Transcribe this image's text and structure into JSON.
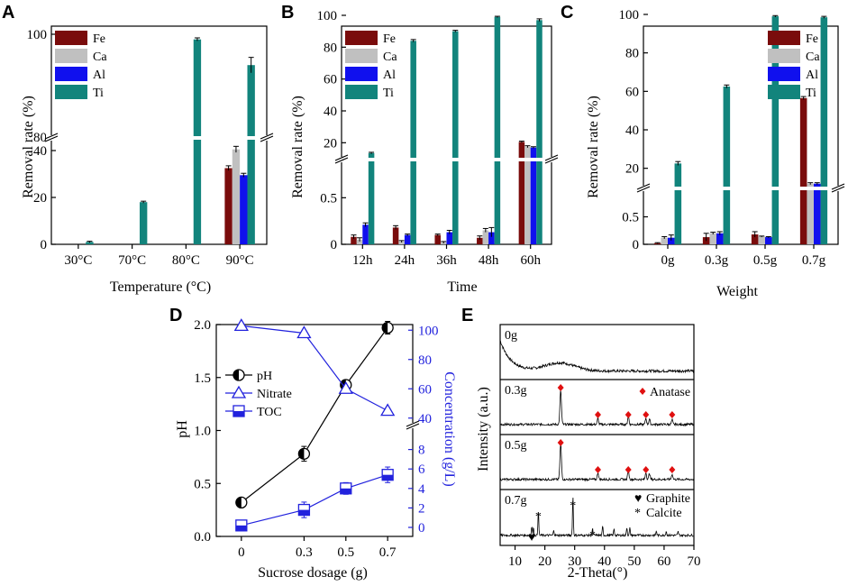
{
  "colors": {
    "Fe": "#7a0c0c",
    "Ca": "#c0c0c0",
    "Al": "#1010ee",
    "Ti": "#12847c",
    "axis_blue": "#2222dd",
    "anatase": "#e01010"
  },
  "panels": [
    {
      "letter": "A",
      "xlabel": "Temperature (°C)",
      "ylabel": "Removal rate (%)"
    },
    {
      "letter": "B",
      "xlabel": "Time",
      "ylabel": "Removal rate (%)"
    },
    {
      "letter": "C",
      "xlabel": "Weight",
      "ylabel": "Removal rate (%)"
    },
    {
      "letter": "D",
      "xlabel": "Sucrose dosage (g)",
      "ylabel": "pH",
      "ylabel2": "Concentration (g/L)"
    },
    {
      "letter": "E",
      "xlabel": "2-Theta(°)",
      "ylabel": "Intensity (a.u.)"
    }
  ],
  "chart_data": [
    {
      "id": "A",
      "type": "bar",
      "title": "",
      "categories": [
        "30°C",
        "70°C",
        "80°C",
        "90°C"
      ],
      "series": [
        {
          "name": "Fe",
          "values": [
            0,
            0,
            0,
            32.5
          ],
          "errors": [
            0,
            0,
            0,
            1
          ]
        },
        {
          "name": "Ca",
          "values": [
            0,
            0,
            0,
            40.5
          ],
          "errors": [
            0,
            0,
            0,
            1.3
          ]
        },
        {
          "name": "Al",
          "values": [
            0,
            0,
            0,
            29.5
          ],
          "errors": [
            0,
            0,
            0,
            0.8
          ]
        },
        {
          "name": "Ti",
          "values": [
            1,
            18,
            99,
            94
          ],
          "errors": [
            0.3,
            0.4,
            0.3,
            1.5
          ]
        }
      ],
      "y_segments": [
        {
          "range": [
            0,
            45
          ],
          "ticks": [
            0,
            20,
            40
          ]
        },
        {
          "range": [
            80,
            100
          ],
          "ticks": [
            80,
            100
          ]
        }
      ],
      "yticklabels_top": [
        "80",
        "100"
      ],
      "xlabel": "Temperature (°C)",
      "ylabel": "Removal rate (%)",
      "legend": "top-left"
    },
    {
      "id": "B",
      "type": "bar",
      "title": "",
      "categories": [
        "12h",
        "24h",
        "36h",
        "48h",
        "60h"
      ],
      "series": [
        {
          "name": "Fe",
          "values": [
            0.08,
            0.18,
            0.1,
            0.07,
            20.5
          ],
          "errors": [
            0.02,
            0.02,
            0.01,
            0.02,
            0.5
          ]
        },
        {
          "name": "Ca",
          "values": [
            0.05,
            0.03,
            0.02,
            0.15,
            17.5
          ],
          "errors": [
            0.02,
            0.01,
            0.01,
            0.02,
            0.6
          ]
        },
        {
          "name": "Al",
          "values": [
            0.21,
            0.1,
            0.13,
            0.13,
            17
          ],
          "errors": [
            0.02,
            0.01,
            0.02,
            0.05,
            0.5
          ]
        },
        {
          "name": "Ti",
          "values": [
            13.5,
            84,
            90,
            99,
            97
          ],
          "errors": [
            0.5,
            0.8,
            0.6,
            0.4,
            0.8
          ]
        }
      ],
      "y_segments": [
        {
          "range": [
            0,
            0.9
          ],
          "ticks": [
            0,
            0.5
          ]
        },
        {
          "range": [
            10,
            100
          ],
          "ticks": [
            20,
            40,
            60,
            80,
            100
          ]
        }
      ],
      "xlabel": "Time",
      "ylabel": "Removal rate (%)",
      "legend": "top-left"
    },
    {
      "id": "C",
      "type": "bar",
      "title": "",
      "categories": [
        "0g",
        "0.3g",
        "0.5g",
        "0.7g"
      ],
      "series": [
        {
          "name": "Fe",
          "values": [
            0.02,
            0.13,
            0.18,
            56.5
          ],
          "errors": [
            0.01,
            0.07,
            0.05,
            0.8
          ]
        },
        {
          "name": "Ca",
          "values": [
            0.12,
            0.2,
            0.14,
            12
          ],
          "errors": [
            0.02,
            0.02,
            0.01,
            0.5
          ]
        },
        {
          "name": "Al",
          "values": [
            0.12,
            0.2,
            0.13,
            12
          ],
          "errors": [
            0.05,
            0.03,
            0.01,
            0.5
          ]
        },
        {
          "name": "Ti",
          "values": [
            22.5,
            62.5,
            99,
            98.5
          ],
          "errors": [
            1,
            0.8,
            0.4,
            0.5
          ]
        }
      ],
      "y_segments": [
        {
          "range": [
            0,
            1
          ],
          "ticks": [
            0,
            0.5
          ]
        },
        {
          "range": [
            10,
            100
          ],
          "ticks": [
            20,
            40,
            60,
            80,
            100
          ]
        }
      ],
      "xlabel": "Weight",
      "ylabel": "Removal rate (%)",
      "legend": "top-right"
    },
    {
      "id": "D",
      "type": "line",
      "x": [
        0,
        0.3,
        0.5,
        0.7
      ],
      "xticklabels": [
        "0",
        "0.3",
        "0.5",
        "0.7"
      ],
      "series": [
        {
          "name": "pH",
          "axis": "left",
          "values": [
            0.32,
            0.78,
            1.43,
            1.97
          ],
          "errors": [
            0.02,
            0.07,
            0.04,
            0.06
          ],
          "marker": "half-circle"
        },
        {
          "name": "Nitrate",
          "axis": "right",
          "values": [
            103,
            98,
            60,
            45
          ],
          "errors": [
            0,
            0,
            0,
            0
          ],
          "marker": "triangle"
        },
        {
          "name": "TOC",
          "axis": "right",
          "values": [
            0.2,
            1.8,
            4.0,
            5.4
          ],
          "errors": [
            0,
            0.8,
            0.6,
            0.8
          ],
          "marker": "half-square"
        }
      ],
      "ylim": [
        0,
        2
      ],
      "yticks": [
        0,
        0.5,
        1,
        1.5,
        2
      ],
      "yticklabels": [
        "0.0",
        "0.5",
        "1.0",
        "1.5",
        "2.0"
      ],
      "y2_segments": [
        {
          "range": [
            0,
            10
          ],
          "ticks": [
            0,
            2,
            4,
            6,
            8
          ]
        },
        {
          "range": [
            38,
            110
          ],
          "ticks": [
            40,
            60,
            80,
            100
          ]
        }
      ],
      "xlabel": "Sucrose dosage (g)",
      "ylabel": "pH",
      "ylabel2": "Concentration (g/L)",
      "legend": "center-left"
    },
    {
      "id": "E",
      "type": "line",
      "xlim": [
        5,
        70
      ],
      "xticks": [
        10,
        20,
        30,
        40,
        50,
        60,
        70
      ],
      "samples": [
        "0g",
        "0.3g",
        "0.5g",
        "0.7g"
      ],
      "anatase_peaks": [
        25.3,
        37.8,
        48.0,
        53.9,
        62.7
      ],
      "graphite_peaks": [
        15.6
      ],
      "calcite_peaks": [
        17.8,
        29.4,
        36.0
      ],
      "legend": {
        "anatase": "Anatase",
        "graphite": "Graphite",
        "calcite": "Calcite"
      },
      "xlabel": "2-Theta(°)",
      "ylabel": "Intensity (a.u.)"
    }
  ]
}
